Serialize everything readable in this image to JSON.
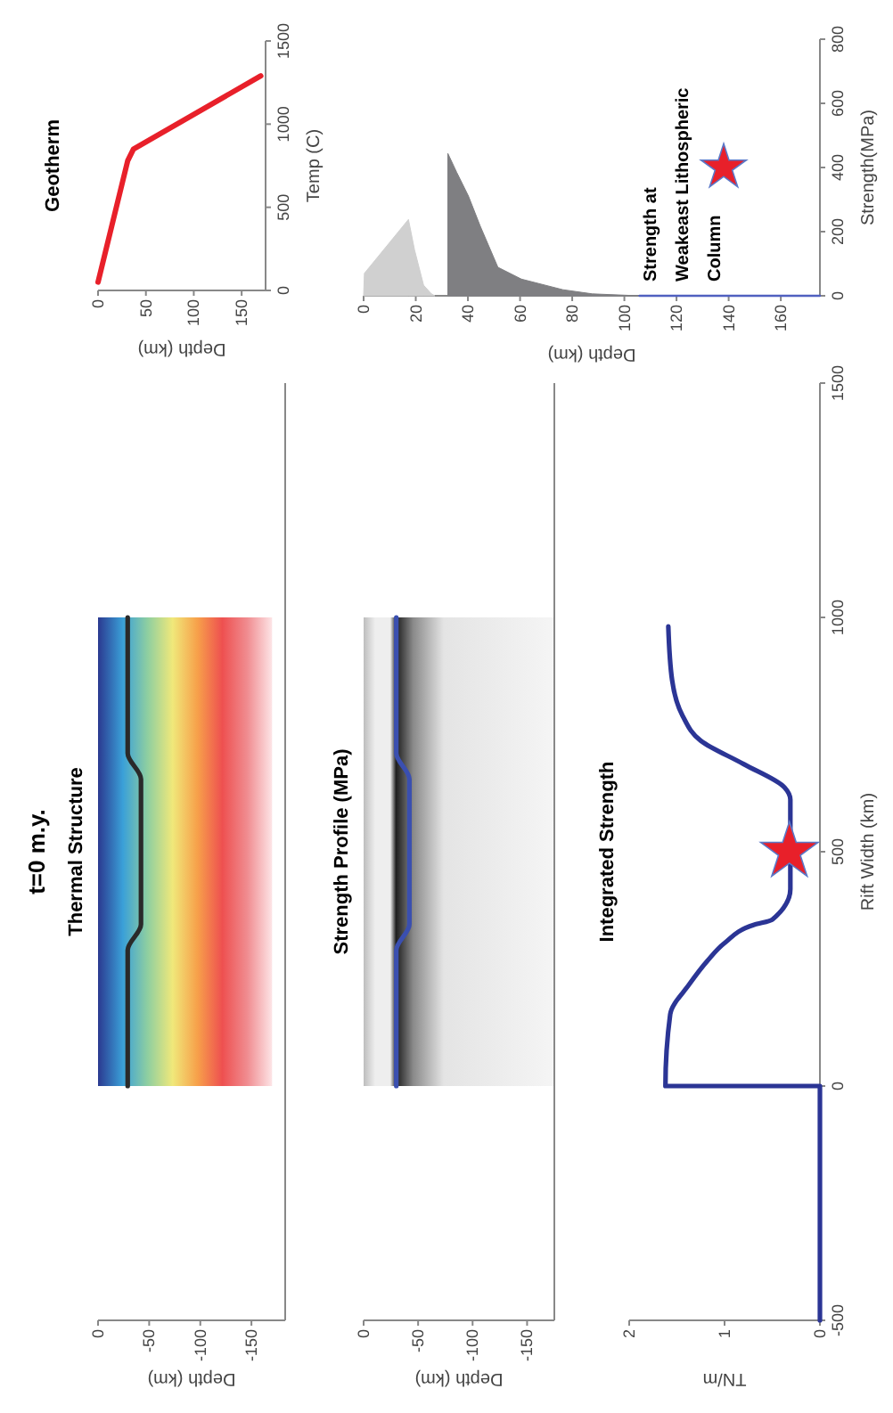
{
  "chart_data": [
    {
      "type": "line",
      "orientation": "horizontal",
      "title": "Thermal Structure",
      "annotations": [
        "t=0 m.y."
      ],
      "xlabel": "Depth (km)",
      "x": [
        0,
        290,
        345,
        655,
        710,
        1000
      ],
      "series": [
        {
          "color": "#2a2a2a",
          "values": [
            -29,
            -29,
            -42,
            -42,
            -29,
            -29
          ]
        }
      ],
      "xlim": [
        0,
        -183
      ],
      "xticks": [
        0,
        -50,
        -100,
        -150
      ],
      "ylim": [
        -500,
        1500
      ],
      "tick_labels": "x"
    },
    {
      "type": "line",
      "orientation": "horizontal",
      "title": "Strength Profile (MPa)",
      "xlabel": "Depth (km)",
      "x": [
        0,
        290,
        345,
        655,
        710,
        1000
      ],
      "series": [
        {
          "color": "#3a4fb0",
          "values": [
            -30,
            -30,
            -42,
            -42,
            -30,
            -30
          ]
        }
      ],
      "xlim": [
        0,
        -175
      ],
      "xticks": [
        0,
        -50,
        -100,
        -150
      ],
      "ylim": [
        -500,
        1500
      ],
      "tick_labels": "x"
    },
    {
      "type": "line",
      "orientation": "horizontal",
      "title": "Integrated Strength",
      "ylabel": "Rift Width (km)",
      "xlabel": "TN/m",
      "ylim": [
        -500,
        1500
      ],
      "yticks": [
        -500,
        0,
        500,
        1000,
        1500
      ],
      "xlim": [
        2,
        0
      ],
      "xticks": [
        2,
        1,
        0
      ],
      "series": [
        {
          "color": "#2b3595",
          "x": [
            -500,
            0,
            0,
            153,
            217,
            267,
            305,
            344,
            355,
            420,
            500,
            546,
            611,
            637,
            687,
            737,
            790,
            866,
            981
          ],
          "values": [
            0,
            0,
            1.62,
            1.57,
            1.37,
            1.18,
            1.0,
            0.69,
            0.5,
            0.31,
            null,
            0.31,
            0.31,
            0.37,
            0.8,
            1.25,
            1.44,
            1.55,
            1.59
          ]
        },
        {
          "type": "scatter",
          "marker": "star",
          "color": "#e8202a",
          "x": [
            500
          ],
          "values": [
            0.32
          ]
        }
      ]
    },
    {
      "type": "line",
      "title": "Geotherm",
      "ylabel": "Temp (C)",
      "xlabel": "Depth (km)",
      "x": [
        0,
        31,
        37,
        170
      ],
      "values": [
        50,
        780,
        850,
        1290
      ],
      "color": "#e8202a",
      "ylim": [
        0,
        1500
      ],
      "yticks": [
        0,
        500,
        1000,
        1500
      ],
      "xlim": [
        0,
        175
      ],
      "xticks": [
        0,
        50,
        100,
        150
      ]
    },
    {
      "type": "area",
      "annotations": [
        "Strength at\nWeakeast Lithospheric\nColumn"
      ],
      "ylabel": "Strength(MPa)",
      "xlabel": "Depth (km)",
      "ylim": [
        0,
        800
      ],
      "yticks": [
        0,
        200,
        400,
        600,
        800
      ],
      "xlim": [
        0,
        175
      ],
      "xticks": [
        0,
        20,
        40,
        60,
        80,
        100,
        120,
        140,
        160
      ],
      "series": [
        {
          "color": "#d0d0d0",
          "x": [
            0,
            0.3,
            17.2,
            19.5,
            23,
            26,
            27.3
          ],
          "values": [
            0,
            70,
            238,
            144,
            33,
            6,
            0
          ]
        },
        {
          "color": "#7f7f82",
          "x": [
            32.3,
            32.3,
            35.7,
            40.2,
            44.7,
            51.5,
            60.5,
            76.4,
            87.7,
            105.8
          ],
          "values": [
            0,
            444,
            385,
            311,
            218,
            89,
            52,
            19,
            6,
            0
          ]
        },
        {
          "type": "line",
          "color": "#5060c0",
          "x": [
            105.8,
            175
          ],
          "values": [
            0,
            0
          ]
        }
      ]
    }
  ]
}
